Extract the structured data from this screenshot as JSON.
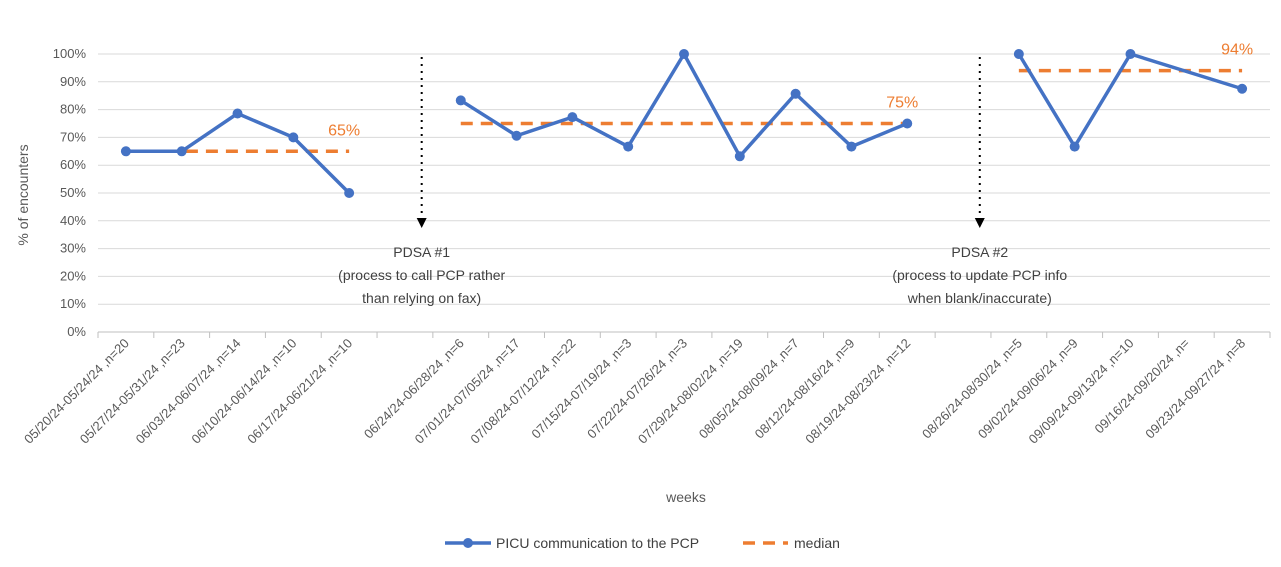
{
  "chart_data": {
    "type": "line",
    "title": "",
    "xlabel": "weeks",
    "ylabel": "% of encounters",
    "ylim": [
      0,
      100
    ],
    "yticks": [
      "0%",
      "10%",
      "20%",
      "30%",
      "40%",
      "50%",
      "60%",
      "70%",
      "80%",
      "90%",
      "100%"
    ],
    "gridlines": true,
    "categories": [
      "05/20/24-05/24/24 ,n=20",
      "05/27/24-05/31/24 ,n=23",
      "06/03/24-06/07/24 ,n=14",
      "06/10/24-06/14/24 ,n=10",
      "06/17/24-06/21/24 ,n=10",
      "",
      "06/24/24-06/28/24 ,n=6",
      "07/01/24-07/05/24 ,n=17",
      "07/08/24-07/12/24 ,n=22",
      "07/15/24-07/19/24 ,n=3",
      "07/22/24-07/26/24 ,n=3",
      "07/29/24-08/02/24 ,n=19",
      "08/05/24-08/09/24 ,n=7",
      "08/12/24-08/16/24 ,n=9",
      "08/19/24-08/23/24 ,n=12",
      "",
      "08/26/24-08/30/24 ,n=5",
      "09/02/24-09/06/24 ,n=9",
      "09/09/24-09/13/24 ,n=10",
      "09/16/24-09/20/24 ,n=",
      "09/23/24-09/27/24 ,n=8"
    ],
    "series": [
      {
        "name": "PICU communication to the PCP",
        "color": "#4472C4",
        "segments": [
          {
            "x": [
              0,
              1,
              2,
              3,
              4
            ],
            "values": [
              65,
              65,
              78.6,
              70,
              50
            ]
          },
          {
            "x": [
              6,
              7,
              8,
              9,
              10,
              11,
              12,
              13,
              14
            ],
            "values": [
              83.3,
              70.6,
              77.3,
              66.7,
              100,
              63.2,
              85.7,
              66.7,
              75
            ]
          },
          {
            "x": [
              16,
              17,
              18,
              20
            ],
            "values": [
              100,
              66.7,
              100,
              87.5
            ]
          }
        ]
      },
      {
        "name": "median",
        "color": "#ED7D31",
        "style": "dashed",
        "segments": [
          {
            "x_start": 0,
            "x_end": 4,
            "value": 65,
            "label": "65%"
          },
          {
            "x_start": 6,
            "x_end": 14,
            "value": 75,
            "label": "75%"
          },
          {
            "x_start": 16,
            "x_end": 20,
            "value": 94,
            "label": "94%"
          }
        ]
      }
    ],
    "annotations": [
      {
        "x": 5.3,
        "lines": [
          "PDSA #1",
          "(process to call PCP rather",
          "than relying on fax)"
        ]
      },
      {
        "x": 15.3,
        "lines": [
          "PDSA #2",
          "(process to update PCP info",
          "when blank/inaccurate)"
        ]
      }
    ],
    "legend": {
      "position": "bottom",
      "entries": [
        "PICU communication to the PCP",
        "median"
      ]
    }
  }
}
